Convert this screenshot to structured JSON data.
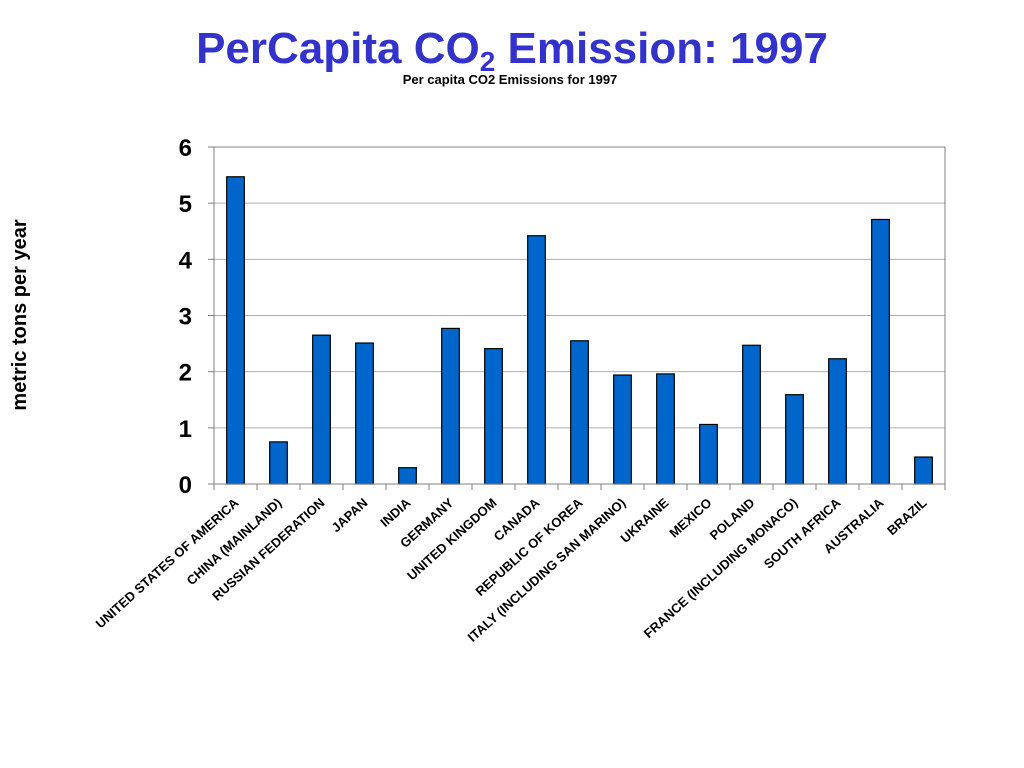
{
  "slide": {
    "title_main": "PerCapita CO",
    "title_sub": "2",
    "title_rest": " Emission: 1997"
  },
  "chart_data": {
    "type": "bar",
    "title": "PerCapita CO2 Emission: 1997",
    "subtitle": "Per capita CO2 Emissions for 1997",
    "xlabel": "",
    "ylabel": "metric tons per year",
    "ylim": [
      0,
      6
    ],
    "yticks": [
      "0",
      "1",
      "2",
      "3",
      "4",
      "5",
      "6"
    ],
    "grid": true,
    "legend": "none",
    "bar_color": "#0066cc",
    "categories": [
      "UNITED STATES OF AMERICA",
      "CHINA (MAINLAND)",
      "RUSSIAN FEDERATION",
      "JAPAN",
      "INDIA",
      "GERMANY",
      "UNITED KINGDOM",
      "CANADA",
      "REPUBLIC OF KOREA",
      "ITALY (INCLUDING SAN MARINO)",
      "UKRAINE",
      "MEXICO",
      "POLAND",
      "FRANCE (INCLUDING MONACO)",
      "SOUTH AFRICA",
      "AUSTRALIA",
      "BRAZIL"
    ],
    "values": [
      5.47,
      0.75,
      2.65,
      2.51,
      0.29,
      2.77,
      2.41,
      4.42,
      2.55,
      1.94,
      1.96,
      1.06,
      2.47,
      1.59,
      2.23,
      4.71,
      0.48
    ]
  }
}
